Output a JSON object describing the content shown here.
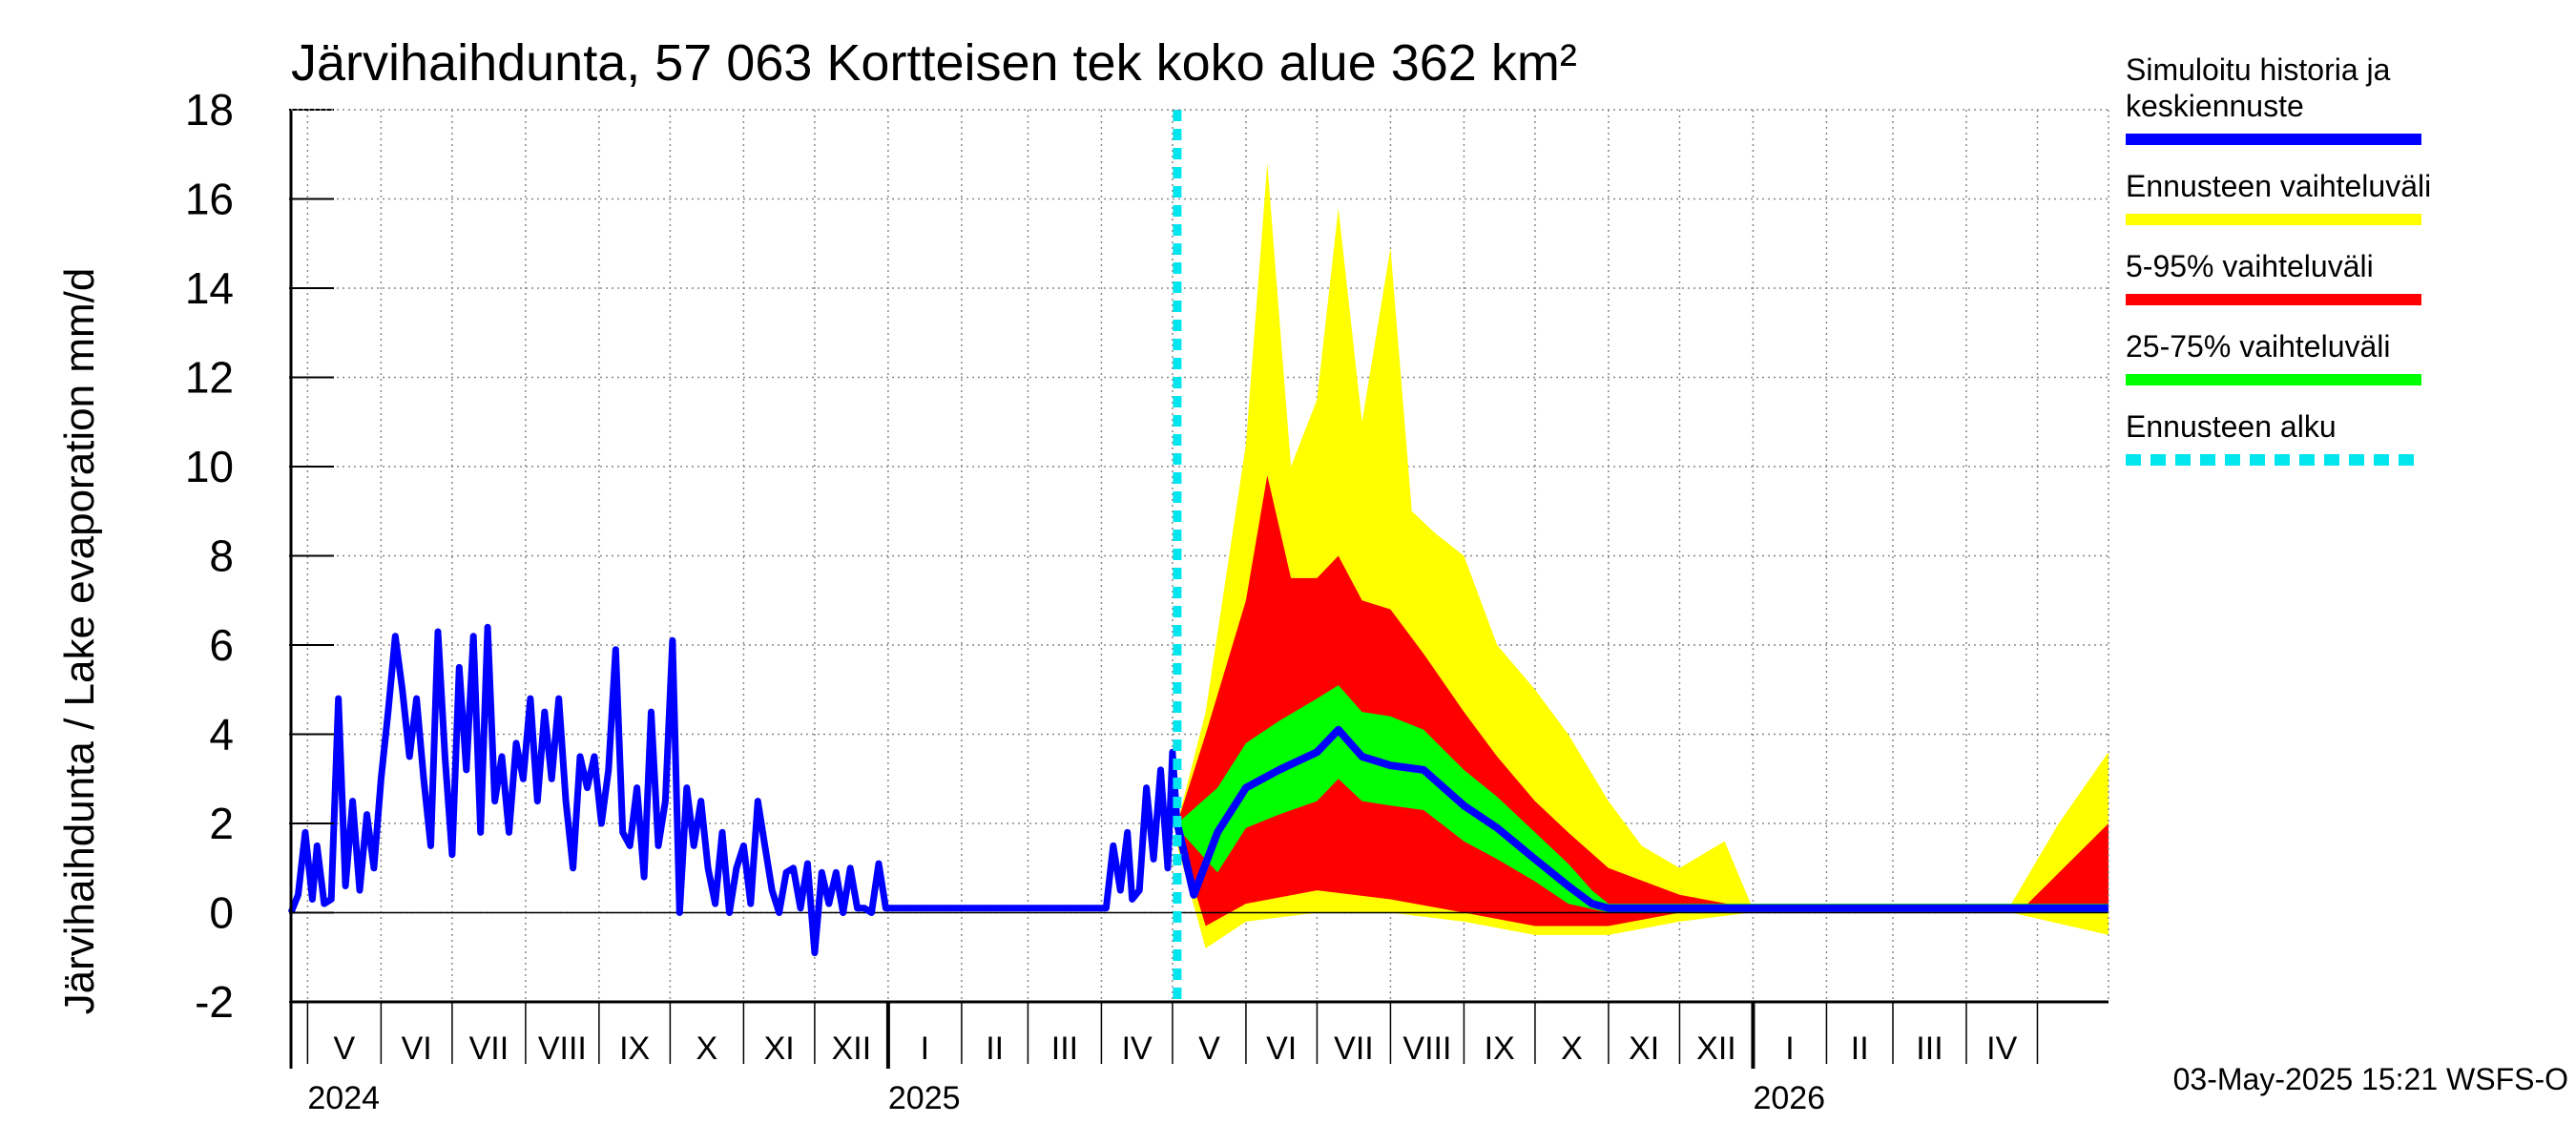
{
  "chart_data": {
    "type": "area",
    "title": "Järvihaihdunta, 57 063 Kortteisen tek koko alue 362 km²",
    "ylabel": "Järvihaihdunta / Lake evaporation   mm/d",
    "ylim": [
      -2,
      18
    ],
    "yticks": [
      -2,
      0,
      2,
      4,
      6,
      8,
      10,
      12,
      14,
      16,
      18
    ],
    "xlim": [
      "2024-04-24",
      "2026-05-31"
    ],
    "grid": true,
    "forecast_start": "2025-05-03",
    "months": [
      {
        "label": "V",
        "start": "2024-05-01"
      },
      {
        "label": "VI",
        "start": "2024-06-01"
      },
      {
        "label": "VII",
        "start": "2024-07-01"
      },
      {
        "label": "VIII",
        "start": "2024-08-01"
      },
      {
        "label": "IX",
        "start": "2024-09-01"
      },
      {
        "label": "X",
        "start": "2024-10-01"
      },
      {
        "label": "XI",
        "start": "2024-11-01"
      },
      {
        "label": "XII",
        "start": "2024-12-01"
      },
      {
        "label": "I",
        "start": "2025-01-01"
      },
      {
        "label": "II",
        "start": "2025-02-01"
      },
      {
        "label": "III",
        "start": "2025-03-01"
      },
      {
        "label": "IV",
        "start": "2025-04-01"
      },
      {
        "label": "V",
        "start": "2025-05-01"
      },
      {
        "label": "VI",
        "start": "2025-06-01"
      },
      {
        "label": "VII",
        "start": "2025-07-01"
      },
      {
        "label": "VIII",
        "start": "2025-08-01"
      },
      {
        "label": "IX",
        "start": "2025-09-01"
      },
      {
        "label": "X",
        "start": "2025-10-01"
      },
      {
        "label": "XI",
        "start": "2025-11-01"
      },
      {
        "label": "XII",
        "start": "2025-12-01"
      },
      {
        "label": "I",
        "start": "2026-01-01"
      },
      {
        "label": "II",
        "start": "2026-02-01"
      },
      {
        "label": "III",
        "start": "2026-03-01"
      },
      {
        "label": "IV",
        "start": "2026-04-01"
      },
      {
        "label": "",
        "start": "2026-05-01"
      }
    ],
    "years": [
      {
        "label": "2024",
        "date": "2024-05-01"
      },
      {
        "label": "2025",
        "date": "2025-01-01"
      },
      {
        "label": "2026",
        "date": "2026-01-01"
      }
    ],
    "history": {
      "name": "Simuloitu historia ja keskiennuste",
      "color": "#0000ff",
      "points": [
        [
          "2024-04-24",
          0.0
        ],
        [
          "2024-04-27",
          0.4
        ],
        [
          "2024-04-30",
          1.8
        ],
        [
          "2024-05-03",
          0.3
        ],
        [
          "2024-05-05",
          1.5
        ],
        [
          "2024-05-08",
          0.2
        ],
        [
          "2024-05-11",
          0.3
        ],
        [
          "2024-05-14",
          4.8
        ],
        [
          "2024-05-17",
          0.6
        ],
        [
          "2024-05-20",
          2.5
        ],
        [
          "2024-05-23",
          0.5
        ],
        [
          "2024-05-26",
          2.2
        ],
        [
          "2024-05-29",
          1.0
        ],
        [
          "2024-06-01",
          3.0
        ],
        [
          "2024-06-04",
          4.5
        ],
        [
          "2024-06-07",
          6.2
        ],
        [
          "2024-06-10",
          5.0
        ],
        [
          "2024-06-13",
          3.5
        ],
        [
          "2024-06-16",
          4.8
        ],
        [
          "2024-06-19",
          3.0
        ],
        [
          "2024-06-22",
          1.5
        ],
        [
          "2024-06-25",
          6.3
        ],
        [
          "2024-06-28",
          3.5
        ],
        [
          "2024-07-01",
          1.3
        ],
        [
          "2024-07-04",
          5.5
        ],
        [
          "2024-07-07",
          3.2
        ],
        [
          "2024-07-10",
          6.2
        ],
        [
          "2024-07-13",
          1.8
        ],
        [
          "2024-07-16",
          6.4
        ],
        [
          "2024-07-19",
          2.5
        ],
        [
          "2024-07-22",
          3.5
        ],
        [
          "2024-07-25",
          1.8
        ],
        [
          "2024-07-28",
          3.8
        ],
        [
          "2024-07-31",
          3.0
        ],
        [
          "2024-08-03",
          4.8
        ],
        [
          "2024-08-06",
          2.5
        ],
        [
          "2024-08-09",
          4.5
        ],
        [
          "2024-08-12",
          3.0
        ],
        [
          "2024-08-15",
          4.8
        ],
        [
          "2024-08-18",
          2.5
        ],
        [
          "2024-08-21",
          1.0
        ],
        [
          "2024-08-24",
          3.5
        ],
        [
          "2024-08-27",
          2.8
        ],
        [
          "2024-08-30",
          3.5
        ],
        [
          "2024-09-02",
          2.0
        ],
        [
          "2024-09-05",
          3.2
        ],
        [
          "2024-09-08",
          5.9
        ],
        [
          "2024-09-11",
          1.8
        ],
        [
          "2024-09-14",
          1.5
        ],
        [
          "2024-09-17",
          2.8
        ],
        [
          "2024-09-20",
          0.8
        ],
        [
          "2024-09-23",
          4.5
        ],
        [
          "2024-09-26",
          1.5
        ],
        [
          "2024-09-29",
          2.5
        ],
        [
          "2024-10-02",
          6.1
        ],
        [
          "2024-10-05",
          0.0
        ],
        [
          "2024-10-08",
          2.8
        ],
        [
          "2024-10-11",
          1.5
        ],
        [
          "2024-10-14",
          2.5
        ],
        [
          "2024-10-17",
          1.0
        ],
        [
          "2024-10-20",
          0.2
        ],
        [
          "2024-10-23",
          1.8
        ],
        [
          "2024-10-26",
          0.0
        ],
        [
          "2024-10-29",
          1.0
        ],
        [
          "2024-11-01",
          1.5
        ],
        [
          "2024-11-04",
          0.2
        ],
        [
          "2024-11-07",
          2.5
        ],
        [
          "2024-11-10",
          1.5
        ],
        [
          "2024-11-13",
          0.5
        ],
        [
          "2024-11-16",
          0.0
        ],
        [
          "2024-11-19",
          0.9
        ],
        [
          "2024-11-22",
          1.0
        ],
        [
          "2024-11-25",
          0.1
        ],
        [
          "2024-11-28",
          1.1
        ],
        [
          "2024-12-01",
          -0.9
        ],
        [
          "2024-12-04",
          0.9
        ],
        [
          "2024-12-07",
          0.2
        ],
        [
          "2024-12-10",
          0.9
        ],
        [
          "2024-12-13",
          0.0
        ],
        [
          "2024-12-16",
          1.0
        ],
        [
          "2024-12-19",
          0.1
        ],
        [
          "2024-12-22",
          0.1
        ],
        [
          "2024-12-25",
          0.0
        ],
        [
          "2024-12-28",
          1.1
        ],
        [
          "2024-12-31",
          0.1
        ],
        [
          "2025-01-03",
          0.1
        ],
        [
          "2025-03-31",
          0.1
        ],
        [
          "2025-04-03",
          0.1
        ],
        [
          "2025-04-06",
          1.5
        ],
        [
          "2025-04-09",
          0.5
        ],
        [
          "2025-04-12",
          1.8
        ],
        [
          "2025-04-14",
          0.3
        ],
        [
          "2025-04-17",
          0.5
        ],
        [
          "2025-04-20",
          2.8
        ],
        [
          "2025-04-23",
          1.2
        ],
        [
          "2025-04-26",
          3.2
        ],
        [
          "2025-04-29",
          1.0
        ],
        [
          "2025-05-01",
          3.6
        ],
        [
          "2025-05-03",
          2.0
        ]
      ]
    },
    "forecast_mean": [
      [
        "2025-05-03",
        2.0
      ],
      [
        "2025-05-10",
        0.4
      ],
      [
        "2025-05-20",
        1.8
      ],
      [
        "2025-06-01",
        2.8
      ],
      [
        "2025-06-15",
        3.2
      ],
      [
        "2025-07-01",
        3.6
      ],
      [
        "2025-07-10",
        4.1
      ],
      [
        "2025-07-20",
        3.5
      ],
      [
        "2025-08-01",
        3.3
      ],
      [
        "2025-08-15",
        3.2
      ],
      [
        "2025-09-01",
        2.4
      ],
      [
        "2025-09-15",
        1.9
      ],
      [
        "2025-10-01",
        1.2
      ],
      [
        "2025-10-15",
        0.6
      ],
      [
        "2025-10-25",
        0.2
      ],
      [
        "2025-11-01",
        0.1
      ],
      [
        "2026-04-25",
        0.1
      ],
      [
        "2026-05-31",
        0.1
      ]
    ],
    "bands": [
      {
        "name": "Ennusteen vaihteluväli",
        "color": "#ffff00",
        "upper": [
          [
            "2025-05-03",
            2.0
          ],
          [
            "2025-05-15",
            4.5
          ],
          [
            "2025-06-01",
            10.5
          ],
          [
            "2025-06-10",
            16.8
          ],
          [
            "2025-06-20",
            10.0
          ],
          [
            "2025-07-01",
            11.5
          ],
          [
            "2025-07-10",
            15.8
          ],
          [
            "2025-07-20",
            11.0
          ],
          [
            "2025-08-01",
            14.9
          ],
          [
            "2025-08-10",
            9.0
          ],
          [
            "2025-08-20",
            8.5
          ],
          [
            "2025-09-01",
            8.0
          ],
          [
            "2025-09-15",
            6.0
          ],
          [
            "2025-10-01",
            5.0
          ],
          [
            "2025-10-15",
            4.0
          ],
          [
            "2025-11-01",
            2.5
          ],
          [
            "2025-11-15",
            1.5
          ],
          [
            "2025-12-01",
            1.0
          ],
          [
            "2025-12-20",
            1.6
          ],
          [
            "2025-12-31",
            0.2
          ],
          [
            "2026-04-20",
            0.2
          ],
          [
            "2026-05-10",
            2.0
          ],
          [
            "2026-05-31",
            3.6
          ]
        ],
        "lower": [
          [
            "2025-05-03",
            1.5
          ],
          [
            "2025-05-15",
            -0.8
          ],
          [
            "2025-06-01",
            -0.2
          ],
          [
            "2025-07-01",
            0.0
          ],
          [
            "2025-08-01",
            0.0
          ],
          [
            "2025-09-01",
            -0.2
          ],
          [
            "2025-10-01",
            -0.5
          ],
          [
            "2025-11-01",
            -0.5
          ],
          [
            "2025-12-01",
            -0.2
          ],
          [
            "2025-12-31",
            0.0
          ],
          [
            "2026-04-20",
            0.0
          ],
          [
            "2026-05-31",
            -0.5
          ]
        ]
      },
      {
        "name": "5-95% vaihteluväli",
        "color": "#ff0000",
        "upper": [
          [
            "2025-05-03",
            2.0
          ],
          [
            "2025-05-15",
            4.0
          ],
          [
            "2025-06-01",
            7.0
          ],
          [
            "2025-06-10",
            9.8
          ],
          [
            "2025-06-20",
            7.5
          ],
          [
            "2025-07-01",
            7.5
          ],
          [
            "2025-07-10",
            8.0
          ],
          [
            "2025-07-20",
            7.0
          ],
          [
            "2025-08-01",
            6.8
          ],
          [
            "2025-08-15",
            5.8
          ],
          [
            "2025-09-01",
            4.5
          ],
          [
            "2025-09-15",
            3.5
          ],
          [
            "2025-10-01",
            2.5
          ],
          [
            "2025-10-15",
            1.8
          ],
          [
            "2025-11-01",
            1.0
          ],
          [
            "2025-12-01",
            0.4
          ],
          [
            "2025-12-31",
            0.1
          ],
          [
            "2026-04-25",
            0.1
          ],
          [
            "2026-05-31",
            2.0
          ]
        ],
        "lower": [
          [
            "2025-05-03",
            1.8
          ],
          [
            "2025-05-15",
            -0.3
          ],
          [
            "2025-06-01",
            0.2
          ],
          [
            "2025-07-01",
            0.5
          ],
          [
            "2025-08-01",
            0.3
          ],
          [
            "2025-09-01",
            0.0
          ],
          [
            "2025-10-01",
            -0.3
          ],
          [
            "2025-11-01",
            -0.3
          ],
          [
            "2025-12-01",
            0.0
          ],
          [
            "2026-05-31",
            0.0
          ]
        ]
      },
      {
        "name": "25-75% vaihteluväli",
        "color": "#00ff00",
        "upper": [
          [
            "2025-05-03",
            2.0
          ],
          [
            "2025-05-20",
            2.8
          ],
          [
            "2025-06-01",
            3.8
          ],
          [
            "2025-06-15",
            4.3
          ],
          [
            "2025-07-01",
            4.8
          ],
          [
            "2025-07-10",
            5.1
          ],
          [
            "2025-07-20",
            4.5
          ],
          [
            "2025-08-01",
            4.4
          ],
          [
            "2025-08-15",
            4.1
          ],
          [
            "2025-09-01",
            3.2
          ],
          [
            "2025-09-15",
            2.6
          ],
          [
            "2025-10-01",
            1.8
          ],
          [
            "2025-10-15",
            1.1
          ],
          [
            "2025-10-25",
            0.5
          ],
          [
            "2025-11-01",
            0.2
          ],
          [
            "2026-05-31",
            0.2
          ]
        ],
        "lower": [
          [
            "2025-05-03",
            1.9
          ],
          [
            "2025-05-20",
            0.9
          ],
          [
            "2025-06-01",
            1.9
          ],
          [
            "2025-06-15",
            2.2
          ],
          [
            "2025-07-01",
            2.5
          ],
          [
            "2025-07-10",
            3.0
          ],
          [
            "2025-07-20",
            2.5
          ],
          [
            "2025-08-01",
            2.4
          ],
          [
            "2025-08-15",
            2.3
          ],
          [
            "2025-09-01",
            1.6
          ],
          [
            "2025-09-15",
            1.2
          ],
          [
            "2025-10-01",
            0.7
          ],
          [
            "2025-10-15",
            0.2
          ],
          [
            "2025-11-01",
            0.0
          ],
          [
            "2026-05-31",
            0.0
          ]
        ]
      }
    ],
    "legend": {
      "placement": "right",
      "items": [
        {
          "label_lines": [
            "Simuloitu historia ja",
            "keskiennuste"
          ],
          "color": "#0000ff",
          "style": "solid"
        },
        {
          "label_lines": [
            "Ennusteen vaihteluväli"
          ],
          "color": "#ffff00",
          "style": "solid"
        },
        {
          "label_lines": [
            "5-95% vaihteluväli"
          ],
          "color": "#ff0000",
          "style": "solid"
        },
        {
          "label_lines": [
            "25-75% vaihteluväli"
          ],
          "color": "#00ff00",
          "style": "solid"
        },
        {
          "label_lines": [
            "Ennusteen alku"
          ],
          "color": "#00e5ee",
          "style": "dashed"
        }
      ]
    },
    "footer": "03-May-2025 15:21 WSFS-O"
  }
}
